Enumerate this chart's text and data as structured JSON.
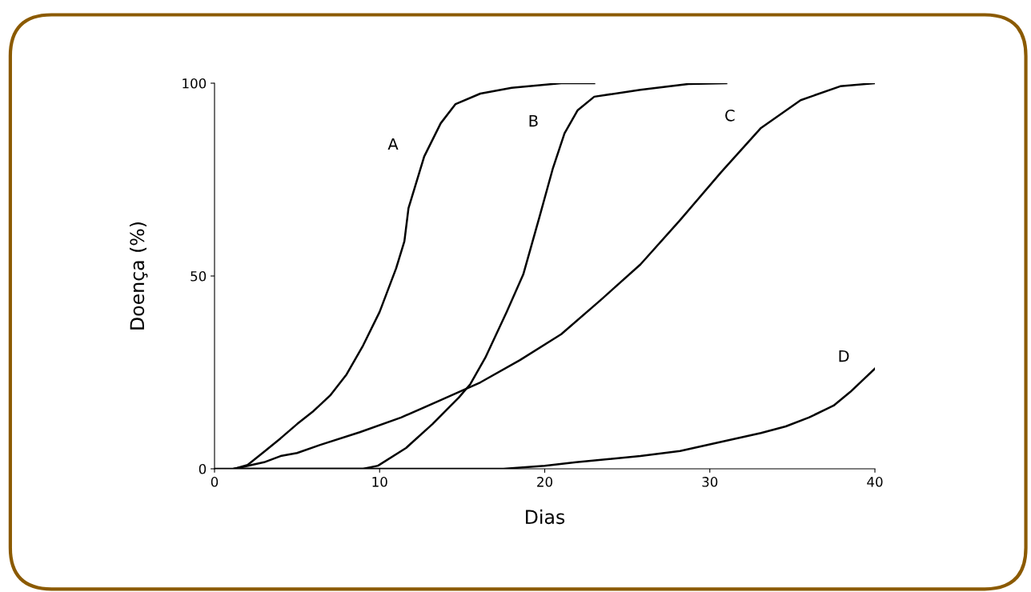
{
  "chart_data": {
    "type": "line",
    "xlabel": "Dias",
    "ylabel": "Doença (%)",
    "xlim": [
      0,
      40
    ],
    "ylim": [
      0,
      100
    ],
    "xticks": [
      0,
      10,
      20,
      30,
      40
    ],
    "yticks": [
      0,
      50,
      100
    ],
    "grid": false,
    "legend": false,
    "series": [
      {
        "name": "A",
        "color": "#000000",
        "x": [
          0,
          1.2,
          2,
          3,
          4,
          5,
          6,
          7,
          8,
          9,
          10,
          11,
          11.5,
          11.75,
          12.7,
          13.7,
          14.6,
          16.1,
          18,
          21,
          23
        ],
        "values": [
          0,
          0,
          1,
          4.4,
          7.9,
          11.6,
          15,
          19,
          24.5,
          32,
          40.7,
          52,
          59,
          67.6,
          81,
          89.6,
          94.6,
          97.3,
          98.8,
          100,
          100
        ]
      },
      {
        "name": "B",
        "color": "#000000",
        "x": [
          1.2,
          9,
          9.9,
          11.6,
          13.2,
          14.8,
          15.5,
          16.4,
          17.7,
          18.7,
          19.7,
          20.5,
          21.2,
          22,
          23,
          25.8,
          28.7,
          31
        ],
        "values": [
          0,
          0,
          0.8,
          5.4,
          11.6,
          18.5,
          22,
          28.8,
          40.7,
          50.4,
          65.6,
          78,
          87,
          93,
          96.5,
          98.3,
          99.8,
          100
        ]
      },
      {
        "name": "C",
        "color": "#000000",
        "x": [
          1.2,
          3,
          4,
          5,
          6.4,
          8.8,
          11.3,
          13.7,
          16.1,
          18.5,
          21,
          23.4,
          25.8,
          28.2,
          30.7,
          33.1,
          35.5,
          37.9,
          40
        ],
        "values": [
          0,
          1.7,
          3.3,
          4.1,
          6.2,
          9.5,
          13.3,
          17.8,
          22.4,
          28.2,
          34.9,
          43.8,
          53,
          64.5,
          77,
          88.4,
          95.6,
          99.2,
          100
        ]
      },
      {
        "name": "D",
        "color": "#000000",
        "x": [
          1.2,
          17.5,
          20,
          21.9,
          25.8,
          28.2,
          30.7,
          33.1,
          34.6,
          36,
          37.5,
          38.5,
          40
        ],
        "values": [
          0,
          0,
          0.8,
          1.7,
          3.3,
          4.6,
          7,
          9.3,
          11,
          13.3,
          16.4,
          19.9,
          26
        ]
      }
    ]
  }
}
